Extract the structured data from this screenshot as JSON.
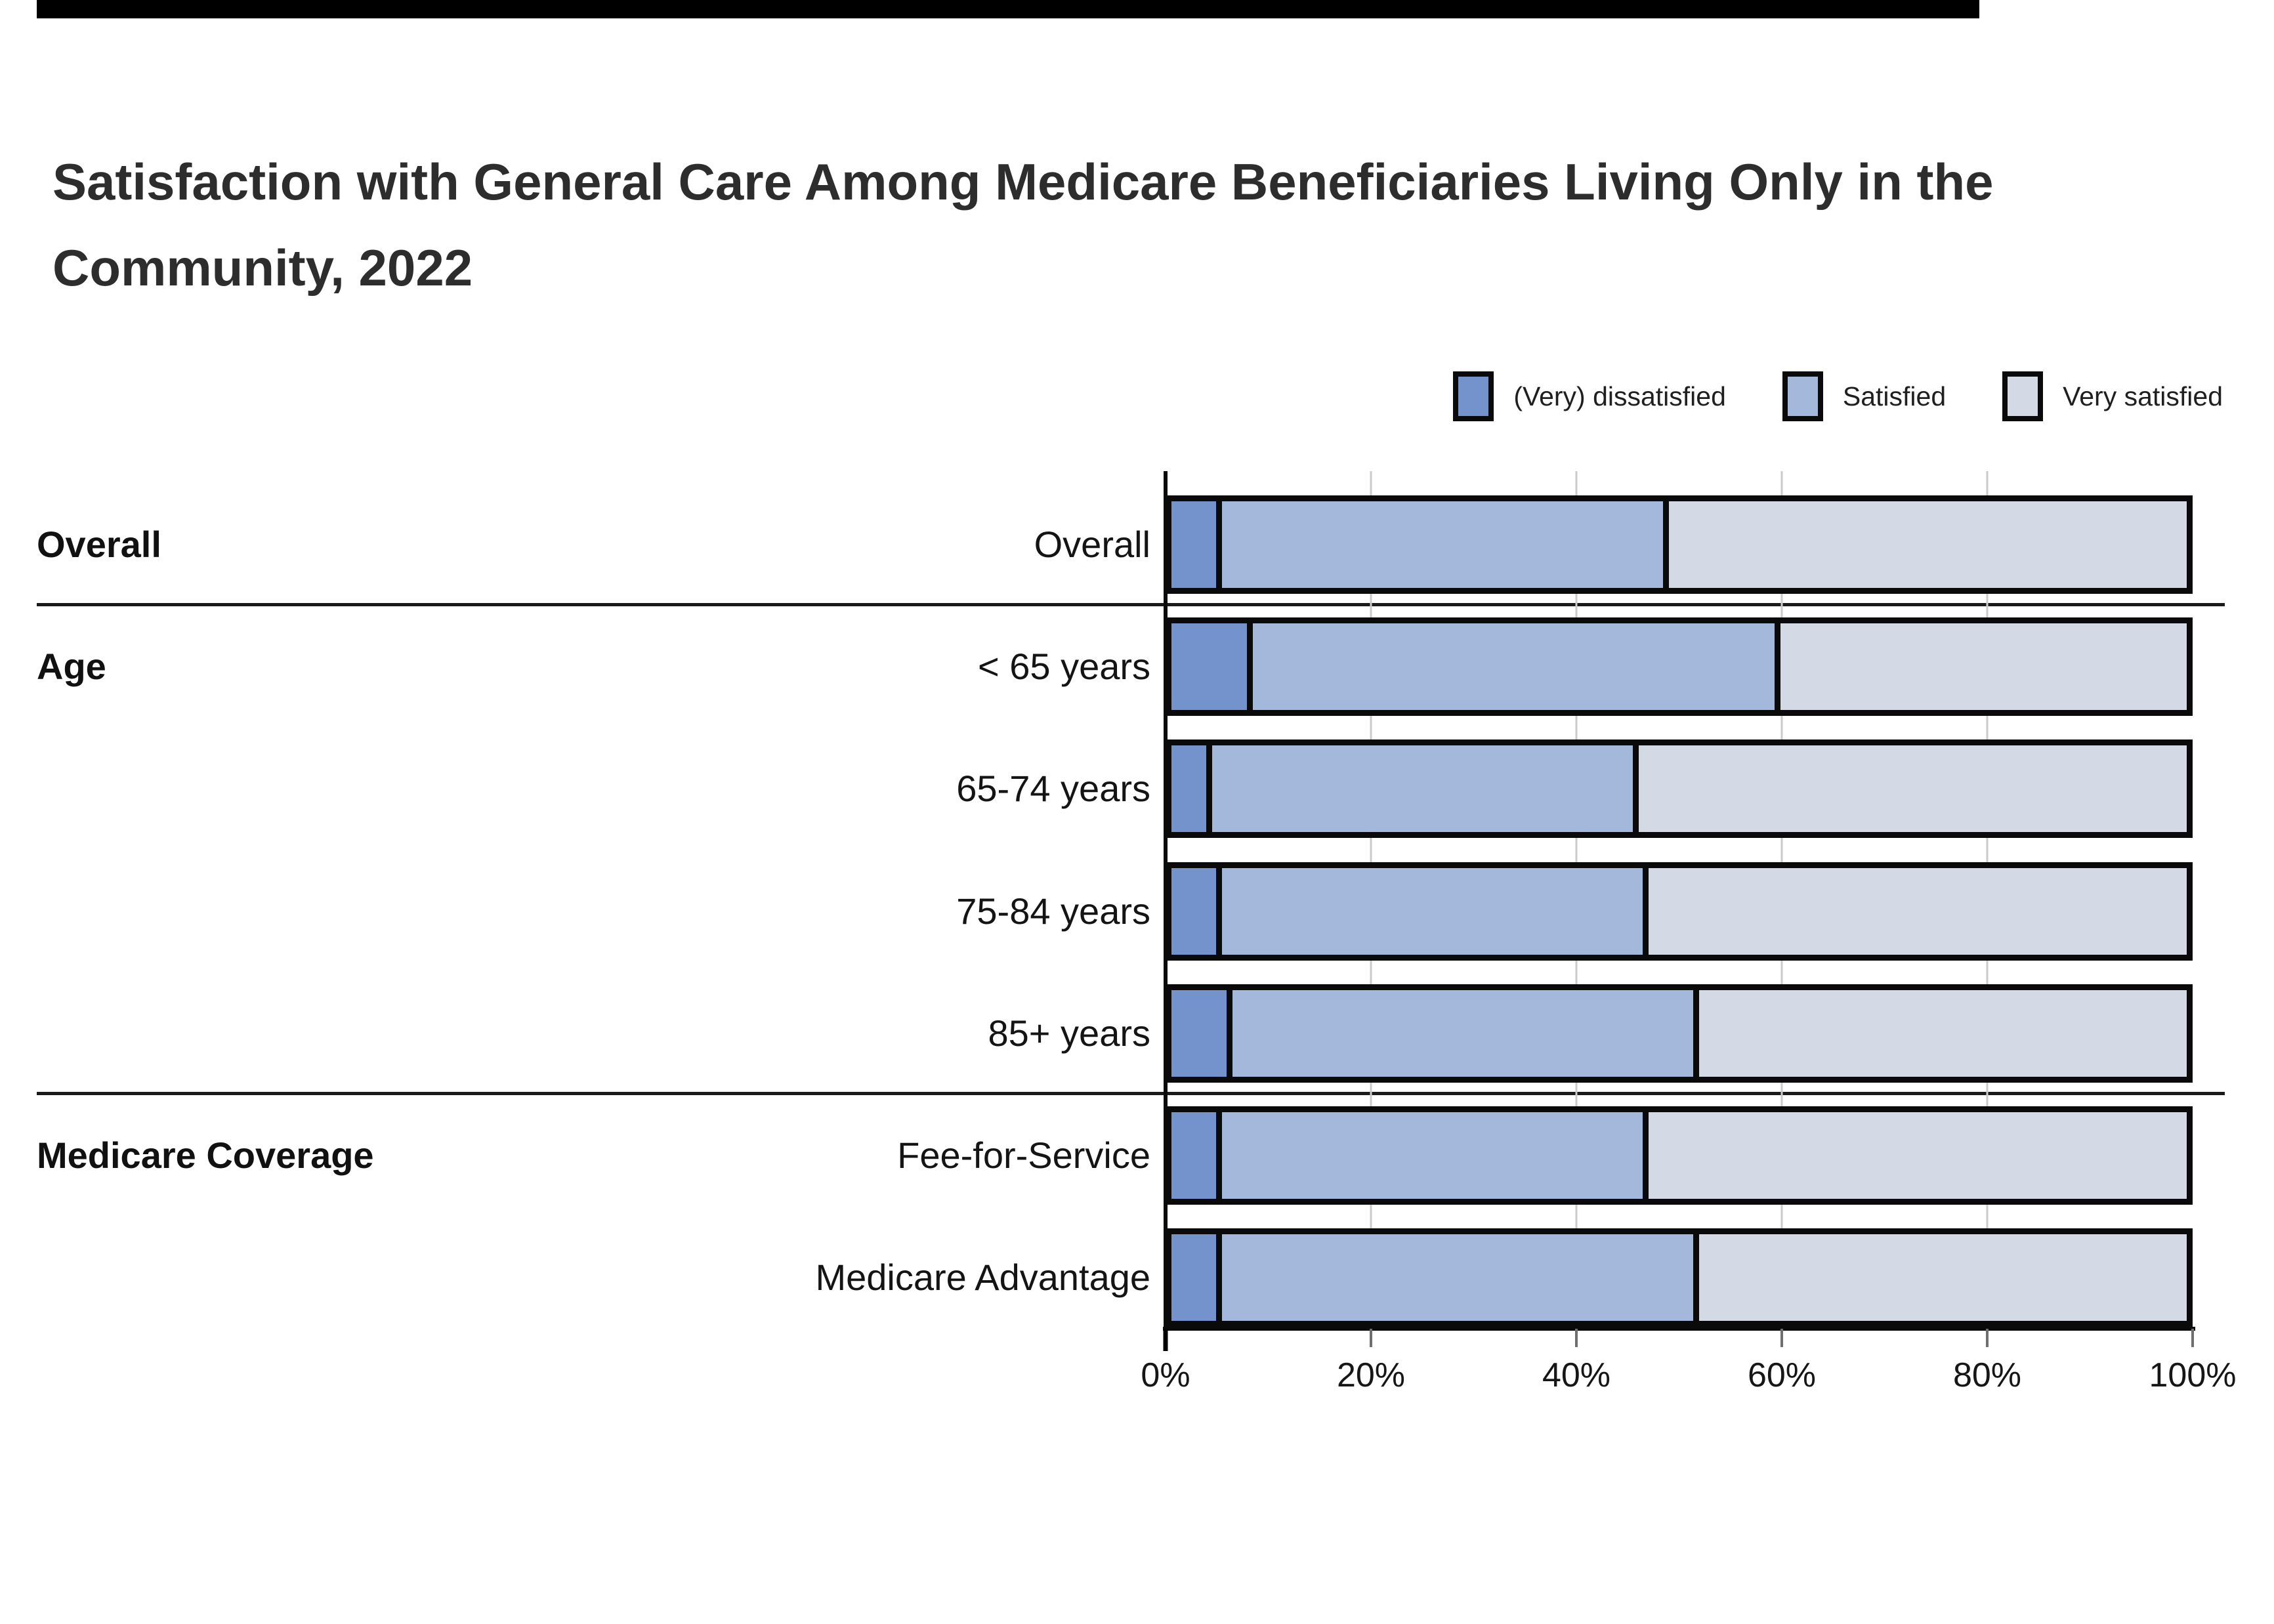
{
  "page": {
    "background": "#ffffff",
    "top_bar_color": "#000000",
    "accent_border_color": "#0a0a0a",
    "gridline_color": "#cbcbcb"
  },
  "chart_data": {
    "type": "bar",
    "variant": "horizontal_stacked_100pct",
    "title": "Satisfaction with General Care Among Medicare Beneficiaries Living Only in the Community, 2022",
    "units": "%",
    "legend_position": "top-right",
    "xlim": [
      0,
      100
    ],
    "x_axis": {
      "tick_labels": [
        "0%",
        "20%",
        "40%",
        "60%",
        "80%",
        "100%"
      ],
      "gridlines_at": [
        20,
        40,
        60,
        80
      ]
    },
    "series": [
      {
        "name": "(Very) dissatisfied",
        "color": "#7492CB"
      },
      {
        "name": "Satisfied",
        "color": "#A3B8DB"
      },
      {
        "name": "Very satisfied",
        "color": "#D3DAE6"
      }
    ],
    "groups": [
      {
        "label": "Overall"
      },
      {
        "label": "Age"
      },
      {
        "label": "Medicare Coverage"
      }
    ],
    "rows": [
      {
        "label": "Overall",
        "group": "Overall",
        "values": [
          5,
          44,
          51
        ]
      },
      {
        "label": "< 65 years",
        "group": "Age",
        "values": [
          8,
          52,
          40
        ]
      },
      {
        "label": "65-74 years",
        "group": "Age",
        "values": [
          4,
          42,
          54
        ]
      },
      {
        "label": "75-84 years",
        "group": "Age",
        "values": [
          5,
          42,
          53
        ]
      },
      {
        "label": "85+ years",
        "group": "Age",
        "values": [
          6,
          46,
          48
        ]
      },
      {
        "label": "Fee-for-Service",
        "group": "Medicare Coverage",
        "values": [
          5,
          42,
          53
        ]
      },
      {
        "label": "Medicare Advantage",
        "group": "Medicare Coverage",
        "values": [
          5,
          47,
          48
        ]
      }
    ]
  }
}
